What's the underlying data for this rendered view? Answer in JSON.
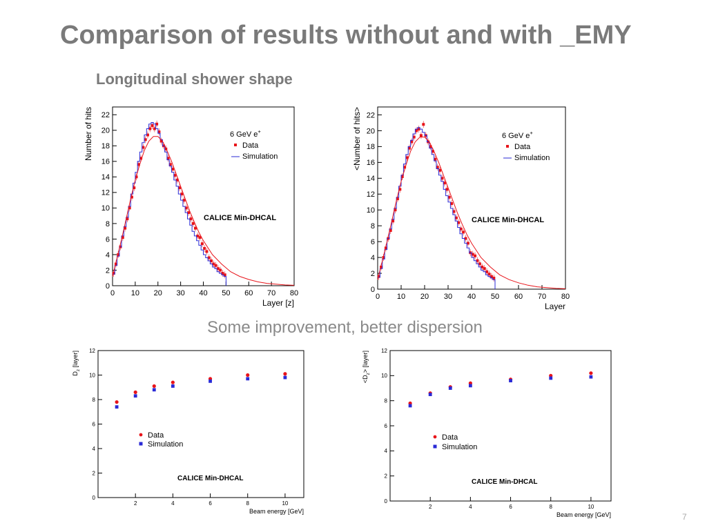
{
  "slide": {
    "title": "Comparison of results without and with _EMY",
    "subtitle": "Longitudinal shower shape",
    "caption": "Some improvement, better dispersion",
    "page_number": "7"
  },
  "colors": {
    "data": "#e8141a",
    "simulation": "#2a2ad6",
    "fit": "#e8141a",
    "axis": "#000000",
    "text_gray": "#7a7a7a"
  },
  "chart_data": [
    {
      "type": "line",
      "title": "",
      "xlabel": "Layer [z]",
      "ylabel": "Number of hits",
      "xlim": [
        0,
        80
      ],
      "ylim": [
        0,
        23
      ],
      "xticks": [
        0,
        10,
        20,
        30,
        40,
        50,
        60,
        70,
        80
      ],
      "yticks": [
        0,
        2,
        4,
        6,
        8,
        10,
        12,
        14,
        16,
        18,
        20,
        22
      ],
      "legend_position": "top-right",
      "legend_header": "6 GeV e",
      "legend_header_sup": "+",
      "watermark": "CALICE Min-DHCAL",
      "series": [
        {
          "name": "Data",
          "style": "markers",
          "x": [
            0,
            1,
            2,
            3,
            4,
            5,
            6,
            7,
            8,
            9,
            10,
            11,
            12,
            13,
            14,
            15,
            16,
            17,
            18,
            19,
            20,
            21,
            22,
            23,
            24,
            25,
            26,
            27,
            28,
            29,
            30,
            31,
            32,
            33,
            34,
            35,
            36,
            37,
            38,
            39,
            40,
            41,
            42,
            43,
            44,
            45,
            46,
            47,
            48,
            49
          ],
          "values": [
            1.6,
            2.8,
            4.0,
            5.0,
            6.2,
            7.4,
            8.6,
            10.0,
            11.4,
            12.6,
            14.0,
            15.6,
            16.4,
            17.8,
            18.8,
            19.4,
            20.2,
            20.6,
            20.2,
            20.8,
            19.8,
            18.6,
            18.0,
            17.6,
            16.4,
            15.6,
            15.0,
            14.2,
            13.6,
            12.6,
            11.8,
            11.0,
            10.0,
            9.4,
            8.6,
            8.0,
            7.4,
            6.4,
            6.2,
            5.4,
            4.8,
            4.4,
            3.6,
            3.2,
            2.8,
            2.6,
            2.2,
            2.0,
            1.6,
            1.4
          ]
        },
        {
          "name": "Simulation",
          "style": "step",
          "x": [
            0,
            1,
            2,
            3,
            4,
            5,
            6,
            7,
            8,
            9,
            10,
            11,
            12,
            13,
            14,
            15,
            16,
            17,
            18,
            19,
            20,
            21,
            22,
            23,
            24,
            25,
            26,
            27,
            28,
            29,
            30,
            31,
            32,
            33,
            34,
            35,
            36,
            37,
            38,
            39,
            40,
            41,
            42,
            43,
            44,
            45,
            46,
            47,
            48,
            49
          ],
          "values": [
            1.5,
            2.6,
            3.8,
            5.0,
            6.4,
            7.6,
            8.8,
            10.2,
            11.8,
            13.2,
            14.6,
            16.0,
            17.2,
            18.4,
            19.4,
            20.2,
            20.8,
            21.0,
            20.8,
            20.2,
            19.6,
            18.8,
            18.0,
            17.2,
            16.2,
            15.4,
            14.6,
            13.6,
            12.8,
            11.8,
            11.0,
            10.2,
            9.4,
            8.6,
            7.8,
            7.0,
            6.4,
            5.8,
            5.2,
            4.6,
            4.0,
            3.6,
            3.2,
            2.8,
            2.4,
            2.2,
            1.8,
            1.6,
            1.4,
            1.2
          ]
        },
        {
          "name": "",
          "style": "curve",
          "x": [
            0,
            2,
            4,
            6,
            8,
            10,
            12,
            14,
            16,
            18,
            20,
            22,
            24,
            26,
            28,
            30,
            32,
            34,
            36,
            38,
            40,
            44,
            48,
            52,
            56,
            60,
            64,
            68,
            72,
            76,
            80
          ],
          "values": [
            1.2,
            3.6,
            6.0,
            8.6,
            11.2,
            13.6,
            15.6,
            17.4,
            18.6,
            19.2,
            19.2,
            18.6,
            17.4,
            16.0,
            14.4,
            12.8,
            11.2,
            9.6,
            8.2,
            6.9,
            5.8,
            4.0,
            2.8,
            1.8,
            1.2,
            0.8,
            0.5,
            0.3,
            0.2,
            0.1,
            0.05
          ]
        }
      ]
    },
    {
      "type": "line",
      "title": "",
      "xlabel": "Layer",
      "ylabel": "<Number of hits>",
      "xlim": [
        0,
        80
      ],
      "ylim": [
        0,
        23
      ],
      "xticks": [
        0,
        10,
        20,
        30,
        40,
        50,
        60,
        70,
        80
      ],
      "yticks": [
        0,
        2,
        4,
        6,
        8,
        10,
        12,
        14,
        16,
        18,
        20,
        22
      ],
      "legend_position": "top-right",
      "legend_header": "6 GeV e",
      "legend_header_sup": "+",
      "watermark": "CALICE Min-DHCAL",
      "series": [
        {
          "name": "Data",
          "style": "markers",
          "x": [
            0,
            1,
            2,
            3,
            4,
            5,
            6,
            7,
            8,
            9,
            10,
            11,
            12,
            13,
            14,
            15,
            16,
            17,
            18,
            19,
            20,
            21,
            22,
            23,
            24,
            25,
            26,
            27,
            28,
            29,
            30,
            31,
            32,
            33,
            34,
            35,
            36,
            37,
            38,
            39,
            40,
            41,
            42,
            43,
            44,
            45,
            46,
            47,
            48,
            49
          ],
          "values": [
            1.6,
            2.8,
            4.0,
            5.2,
            6.4,
            7.4,
            8.6,
            10.0,
            11.4,
            12.6,
            14.2,
            15.4,
            16.6,
            17.8,
            18.6,
            19.2,
            20.0,
            20.2,
            19.4,
            20.8,
            19.4,
            18.6,
            18.0,
            17.4,
            16.4,
            15.4,
            15.0,
            14.0,
            13.4,
            12.6,
            11.6,
            10.8,
            9.8,
            9.0,
            8.4,
            7.6,
            7.2,
            6.4,
            5.8,
            4.6,
            4.4,
            4.2,
            3.6,
            3.2,
            2.8,
            2.6,
            2.2,
            1.9,
            1.6,
            1.4
          ]
        },
        {
          "name": "Simulation",
          "style": "step",
          "x": [
            0,
            1,
            2,
            3,
            4,
            5,
            6,
            7,
            8,
            9,
            10,
            11,
            12,
            13,
            14,
            15,
            16,
            17,
            18,
            19,
            20,
            21,
            22,
            23,
            24,
            25,
            26,
            27,
            28,
            29,
            30,
            31,
            32,
            33,
            34,
            35,
            36,
            37,
            38,
            39,
            40,
            41,
            42,
            43,
            44,
            45,
            46,
            47,
            48,
            49
          ],
          "values": [
            1.5,
            2.6,
            3.8,
            5.0,
            6.4,
            7.6,
            8.8,
            10.2,
            11.6,
            13.0,
            14.4,
            15.8,
            17.0,
            18.0,
            18.8,
            19.6,
            20.2,
            20.4,
            20.2,
            19.8,
            19.4,
            18.6,
            17.8,
            17.0,
            16.2,
            15.2,
            14.4,
            13.6,
            12.6,
            11.8,
            11.0,
            10.2,
            9.4,
            8.6,
            7.8,
            7.0,
            6.4,
            5.8,
            5.2,
            4.6,
            4.0,
            3.6,
            3.2,
            2.8,
            2.4,
            2.2,
            1.8,
            1.6,
            1.4,
            1.2
          ]
        },
        {
          "name": "",
          "style": "curve",
          "x": [
            0,
            2,
            4,
            6,
            8,
            10,
            12,
            14,
            16,
            18,
            20,
            22,
            24,
            26,
            28,
            30,
            32,
            34,
            36,
            38,
            40,
            44,
            48,
            52,
            56,
            60,
            64,
            68,
            72,
            76,
            80
          ],
          "values": [
            1.2,
            3.6,
            6.0,
            8.6,
            11.2,
            13.6,
            15.6,
            17.4,
            18.6,
            19.2,
            19.2,
            18.6,
            17.4,
            16.0,
            14.4,
            12.8,
            11.2,
            9.6,
            8.2,
            6.9,
            5.8,
            4.0,
            2.8,
            1.8,
            1.2,
            0.8,
            0.5,
            0.3,
            0.2,
            0.1,
            0.05
          ]
        }
      ]
    },
    {
      "type": "scatter",
      "title": "",
      "xlabel": "Beam energy [GeV]",
      "ylabel": "D",
      "ylabel_sub": "z",
      "ylabel_suffix": " [layer]",
      "xlim": [
        0,
        11
      ],
      "ylim": [
        0,
        12
      ],
      "xticks": [
        2,
        4,
        6,
        8,
        10
      ],
      "yticks": [
        0,
        2,
        4,
        6,
        8,
        10,
        12
      ],
      "legend_position": "center-left",
      "watermark": "CALICE Min-DHCAL",
      "series": [
        {
          "name": "Data",
          "marker": "circle",
          "x": [
            1,
            2,
            3,
            4,
            6,
            8,
            10
          ],
          "values": [
            7.8,
            8.6,
            9.1,
            9.4,
            9.7,
            10.0,
            10.1
          ]
        },
        {
          "name": "Simulation",
          "marker": "square",
          "x": [
            1,
            2,
            3,
            4,
            6,
            8,
            10
          ],
          "values": [
            7.4,
            8.3,
            8.8,
            9.1,
            9.5,
            9.7,
            9.8
          ]
        }
      ]
    },
    {
      "type": "scatter",
      "title": "",
      "xlabel": "Beam energy [GeV]",
      "ylabel": "<D",
      "ylabel_sub": "z",
      "ylabel_suffix": "> [layer]",
      "xlim": [
        0,
        11
      ],
      "ylim": [
        0,
        12
      ],
      "xticks": [
        2,
        4,
        6,
        8,
        10
      ],
      "yticks": [
        0,
        2,
        4,
        6,
        8,
        10,
        12
      ],
      "legend_position": "center-left",
      "watermark": "CALICE Min-DHCAL",
      "series": [
        {
          "name": "Data",
          "marker": "circle",
          "x": [
            1,
            2,
            3,
            4,
            6,
            8,
            10
          ],
          "values": [
            7.8,
            8.6,
            9.1,
            9.4,
            9.7,
            10.0,
            10.2
          ]
        },
        {
          "name": "Simulation",
          "marker": "square",
          "x": [
            1,
            2,
            3,
            4,
            6,
            8,
            10
          ],
          "values": [
            7.6,
            8.5,
            9.0,
            9.2,
            9.6,
            9.8,
            9.9
          ]
        }
      ]
    }
  ]
}
